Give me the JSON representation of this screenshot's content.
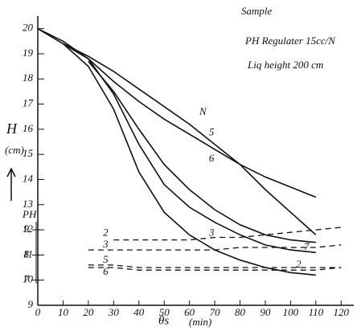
{
  "chart_data": {
    "type": "line",
    "title_lines": [
      "Sample",
      "PH Regulater 15cc/N",
      "Liq height   200 cm"
    ],
    "y_label": "H",
    "y_unit": "(cm)",
    "y2_label": "PH",
    "x_label": "θs",
    "x_unit": "(min)",
    "series_heading": "N",
    "x": [
      0,
      10,
      20,
      30,
      40,
      50,
      60,
      70,
      80,
      90,
      100,
      110,
      120
    ],
    "xlim": [
      0,
      125
    ],
    "xticks": [
      0,
      10,
      20,
      30,
      40,
      50,
      60,
      70,
      80,
      90,
      100,
      110,
      120
    ],
    "ylim": [
      9,
      20.5
    ],
    "yticks": [
      9,
      10,
      11,
      12,
      13,
      14,
      15,
      16,
      17,
      18,
      19,
      20
    ],
    "y2lim": [
      6,
      17.5
    ],
    "y2ticks": [
      7,
      8,
      9
    ],
    "series": [
      {
        "name": "5",
        "color": "#111",
        "style": "solid",
        "values": [
          null,
          19.4,
          18.9,
          18.3,
          17.6,
          16.9,
          16.2,
          15.4,
          14.6,
          13.6,
          12.7,
          11.8,
          null
        ]
      },
      {
        "name": "6",
        "color": "#111",
        "style": "solid",
        "values": [
          null,
          19.4,
          18.8,
          17.9,
          17.1,
          16.4,
          15.8,
          15.2,
          14.6,
          14.1,
          13.7,
          13.3,
          null
        ]
      },
      {
        "color": "#111",
        "style": "solid",
        "values": [
          null,
          null,
          18.7,
          17.5,
          16.0,
          14.6,
          13.6,
          12.8,
          12.2,
          11.8,
          11.6,
          11.5,
          null
        ]
      },
      {
        "name": "3",
        "color": "#111",
        "style": "solid",
        "values": [
          20,
          19.5,
          18.8,
          17.4,
          15.4,
          13.8,
          12.9,
          12.3,
          11.8,
          11.4,
          11.2,
          11.1,
          null
        ]
      },
      {
        "color": "#111",
        "style": "solid",
        "values": [
          20,
          19.4,
          18.5,
          16.8,
          14.3,
          12.7,
          11.8,
          11.2,
          10.8,
          10.5,
          10.3,
          10.2,
          null
        ]
      },
      {
        "name": "2",
        "color": "#111",
        "style": "dashed",
        "axis": "y2",
        "values": [
          null,
          null,
          null,
          8.6,
          8.6,
          8.6,
          8.6,
          8.7,
          8.7,
          8.8,
          8.9,
          9.0,
          9.1
        ]
      },
      {
        "name": "3",
        "color": "#111",
        "style": "dashed",
        "axis": "y2",
        "values": [
          null,
          null,
          8.2,
          8.2,
          8.2,
          8.2,
          8.2,
          8.2,
          8.3,
          8.3,
          8.3,
          8.3,
          8.4
        ]
      },
      {
        "name": "5",
        "color": "#111",
        "style": "dashed",
        "axis": "y2",
        "values": [
          null,
          null,
          7.6,
          7.6,
          7.5,
          7.5,
          7.5,
          7.5,
          7.5,
          7.5,
          7.5,
          7.5,
          7.5
        ]
      },
      {
        "name": "6",
        "color": "#111",
        "style": "dashed",
        "axis": "y2",
        "values": [
          null,
          null,
          7.5,
          7.5,
          7.4,
          7.4,
          7.4,
          7.4,
          7.4,
          7.4,
          7.4,
          7.4,
          7.5
        ]
      }
    ],
    "end_labels": [
      "7",
      "2"
    ]
  }
}
